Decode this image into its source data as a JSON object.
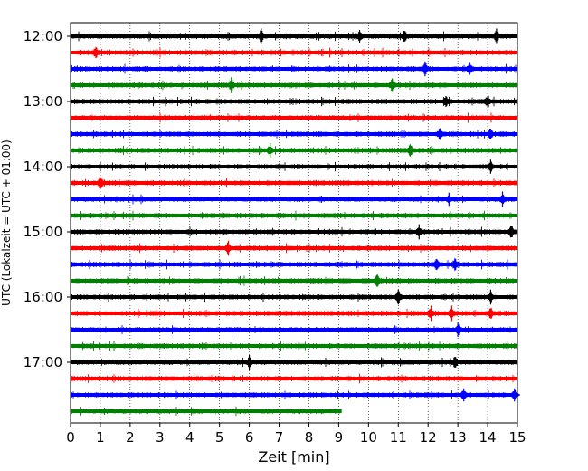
{
  "chart_data": {
    "type": "line",
    "xlabel": "Zeit  [min]",
    "ylabel": "UTC (Lokalzeit = UTC + 01:00)",
    "xlim": [
      0,
      15
    ],
    "x_ticks": [
      "0",
      "1",
      "2",
      "3",
      "4",
      "5",
      "6",
      "7",
      "8",
      "9",
      "10",
      "11",
      "12",
      "13",
      "14",
      "15"
    ],
    "y_ticks": [
      "12:00",
      "13:00",
      "14:00",
      "15:00",
      "16:00",
      "17:00"
    ],
    "grid": "vertical dotted",
    "colors": [
      "#000000",
      "#ff0000",
      "#0000ff",
      "#008000"
    ],
    "rows": [
      {
        "start": "12:00",
        "color": "#000000",
        "end_min": 15,
        "events": [
          6.4,
          9.7,
          11.2,
          14.3
        ]
      },
      {
        "start": "12:15",
        "color": "#ff0000",
        "end_min": 15,
        "events": [
          0.85
        ]
      },
      {
        "start": "12:30",
        "color": "#0000ff",
        "end_min": 15,
        "events": [
          11.9,
          13.4
        ]
      },
      {
        "start": "12:45",
        "color": "#008000",
        "end_min": 15,
        "events": [
          5.4,
          10.8
        ]
      },
      {
        "start": "13:00",
        "color": "#000000",
        "end_min": 15,
        "events": [
          12.6,
          14.0
        ]
      },
      {
        "start": "13:15",
        "color": "#ff0000",
        "end_min": 15,
        "events": []
      },
      {
        "start": "13:30",
        "color": "#0000ff",
        "end_min": 15,
        "events": [
          12.4,
          14.1
        ]
      },
      {
        "start": "13:45",
        "color": "#008000",
        "end_min": 15,
        "events": [
          6.7,
          11.4
        ]
      },
      {
        "start": "14:00",
        "color": "#000000",
        "end_min": 15,
        "events": [
          14.1
        ]
      },
      {
        "start": "14:15",
        "color": "#ff0000",
        "end_min": 15,
        "events": [
          1.0
        ]
      },
      {
        "start": "14:30",
        "color": "#0000ff",
        "end_min": 15,
        "events": [
          12.7,
          14.5
        ]
      },
      {
        "start": "14:45",
        "color": "#008000",
        "end_min": 15,
        "events": []
      },
      {
        "start": "15:00",
        "color": "#000000",
        "end_min": 15,
        "events": [
          11.7,
          14.8
        ]
      },
      {
        "start": "15:15",
        "color": "#ff0000",
        "end_min": 15,
        "events": [
          5.3
        ]
      },
      {
        "start": "15:30",
        "color": "#0000ff",
        "end_min": 15,
        "events": [
          12.3,
          12.9
        ]
      },
      {
        "start": "15:45",
        "color": "#008000",
        "end_min": 15,
        "events": [
          10.3
        ]
      },
      {
        "start": "16:00",
        "color": "#000000",
        "end_min": 15,
        "events": [
          11.0,
          14.1
        ]
      },
      {
        "start": "16:15",
        "color": "#ff0000",
        "end_min": 15,
        "events": [
          12.1,
          12.8,
          14.1
        ]
      },
      {
        "start": "16:30",
        "color": "#0000ff",
        "end_min": 15,
        "events": [
          13.0
        ]
      },
      {
        "start": "16:45",
        "color": "#008000",
        "end_min": 15,
        "events": []
      },
      {
        "start": "17:00",
        "color": "#000000",
        "end_min": 15,
        "events": [
          6.0,
          12.9
        ]
      },
      {
        "start": "17:15",
        "color": "#ff0000",
        "end_min": 15,
        "events": []
      },
      {
        "start": "17:30",
        "color": "#0000ff",
        "end_min": 15,
        "events": [
          13.2,
          14.9
        ]
      },
      {
        "start": "17:45",
        "color": "#008000",
        "end_min": 9.1,
        "events": []
      }
    ]
  }
}
